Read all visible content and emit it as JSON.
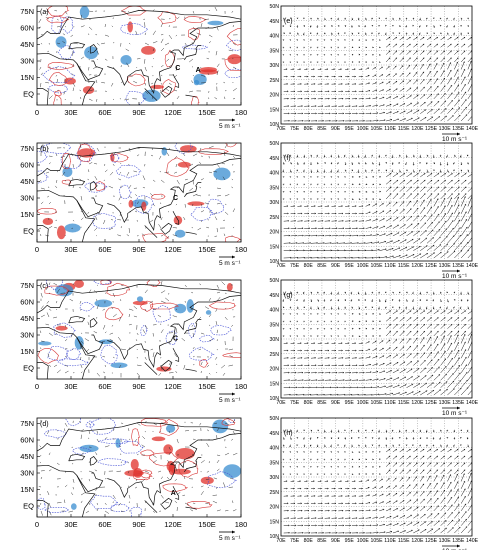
{
  "left_panels": {
    "x_ticks": [
      "0",
      "30E",
      "60E",
      "90E",
      "120E",
      "150E",
      "180"
    ],
    "y_ticks": [
      "75N",
      "60N",
      "45N",
      "30N",
      "15N",
      "EQ"
    ],
    "scale_label": "5 m s⁻¹",
    "colors": {
      "positive": "#e0302a",
      "negative": "#3a8ed0",
      "contour_blue": "#4a55d6",
      "contour_red": "#d83a3a"
    },
    "panels": [
      {
        "label": "(a)",
        "markers": [
          {
            "text": "C",
            "lon": 122,
            "lat": 22
          },
          {
            "text": "A",
            "lon": 140,
            "lat": 20
          }
        ]
      },
      {
        "label": "(b)",
        "markers": [
          {
            "text": "C",
            "lon": 120,
            "lat": 28
          }
        ]
      },
      {
        "label": "(c)",
        "markers": [
          {
            "text": "C",
            "lon": 120,
            "lat": 25
          }
        ]
      },
      {
        "label": "(d)",
        "markers": [
          {
            "text": "A",
            "lon": 118,
            "lat": 10
          }
        ]
      }
    ]
  },
  "right_panels": {
    "x_ticks": [
      "70E",
      "75E",
      "80E",
      "85E",
      "90E",
      "95E",
      "100E",
      "105E",
      "110E",
      "115E",
      "120E",
      "125E",
      "130E",
      "135E",
      "140E"
    ],
    "y_ticks": [
      "10N",
      "15N",
      "20N",
      "25N",
      "30N",
      "35N",
      "40N",
      "45N",
      "50N"
    ],
    "scale_label": "10 m s⁻¹",
    "panels": [
      {
        "label": "(e)"
      },
      {
        "label": "(f)"
      },
      {
        "label": "(g)"
      },
      {
        "label": "(h)"
      }
    ]
  }
}
